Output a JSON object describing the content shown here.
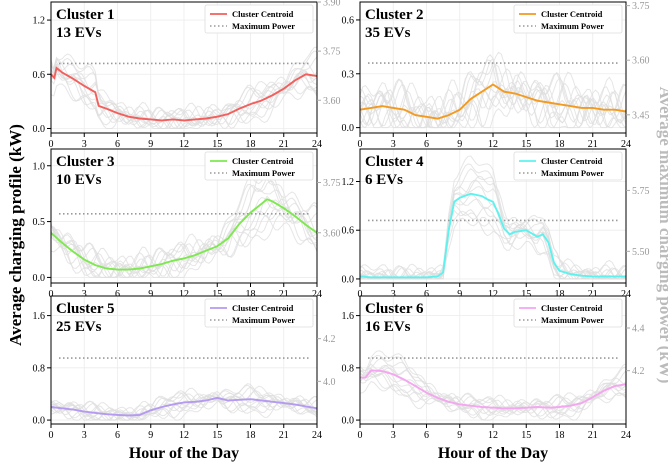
{
  "figure": {
    "ylabel_left": "Average charging profile (kW)",
    "ylabel_right": "Average maximum charging power (kW)",
    "xlabel": "Hour of the Day",
    "legend_centroid": "Cluster Centroid",
    "legend_max": "Maximum Power"
  },
  "chart_data": [
    {
      "type": "line",
      "title": "Cluster 1",
      "subtitle": "13 EVs",
      "color": "#f25f5c",
      "xlim": [
        0,
        24
      ],
      "xticks": [
        0,
        3,
        6,
        9,
        12,
        15,
        18,
        21,
        24
      ],
      "ylim": [
        -0.05,
        1.4
      ],
      "yticks": [
        0.0,
        0.6,
        1.2
      ],
      "ytick_labels": [
        "0.0",
        "0.6",
        "1.2"
      ],
      "y2lim": [
        3.5,
        3.9
      ],
      "y2ticks": [
        3.6,
        3.75,
        3.9
      ],
      "y2tick_labels": [
        "3.60",
        "3.75",
        "3.90"
      ],
      "max_power": 0.72,
      "series": [
        {
          "x": [
            0,
            0.3,
            0.5,
            1,
            2,
            3,
            4,
            4.3,
            5,
            6,
            7,
            8,
            9,
            10,
            11,
            12,
            13,
            14,
            15,
            16,
            17,
            18,
            19,
            20,
            21,
            22,
            23,
            24
          ],
          "y": [
            0.6,
            0.56,
            0.67,
            0.62,
            0.55,
            0.47,
            0.4,
            0.25,
            0.22,
            0.17,
            0.13,
            0.11,
            0.1,
            0.09,
            0.1,
            0.09,
            0.1,
            0.11,
            0.13,
            0.16,
            0.22,
            0.27,
            0.31,
            0.37,
            0.44,
            0.53,
            0.6,
            0.58
          ]
        }
      ]
    },
    {
      "type": "line",
      "title": "Cluster 2",
      "subtitle": "35 EVs",
      "color": "#f39a1f",
      "xlim": [
        0,
        24
      ],
      "xticks": [
        0,
        3,
        6,
        9,
        12,
        15,
        18,
        21,
        24
      ],
      "ylim": [
        -0.03,
        0.7
      ],
      "yticks": [
        0.0,
        0.3,
        0.6
      ],
      "ytick_labels": [
        "0.0",
        "0.3",
        "0.6"
      ],
      "y2lim": [
        3.4,
        3.76
      ],
      "y2ticks": [
        3.45,
        3.6,
        3.75
      ],
      "y2tick_labels": [
        "3.45",
        "3.60",
        "3.75"
      ],
      "max_power": 0.36,
      "series": [
        {
          "x": [
            0,
            1,
            2,
            3,
            4,
            5,
            6,
            7,
            8,
            9,
            10,
            11,
            12,
            13,
            14,
            15,
            16,
            17,
            18,
            19,
            20,
            21,
            22,
            23,
            24
          ],
          "y": [
            0.1,
            0.11,
            0.12,
            0.11,
            0.1,
            0.07,
            0.06,
            0.05,
            0.07,
            0.1,
            0.16,
            0.2,
            0.24,
            0.2,
            0.19,
            0.17,
            0.15,
            0.14,
            0.13,
            0.12,
            0.11,
            0.11,
            0.1,
            0.1,
            0.09
          ]
        }
      ]
    },
    {
      "type": "line",
      "title": "Cluster 3",
      "subtitle": "10 EVs",
      "color": "#7ee84f",
      "xlim": [
        0,
        24
      ],
      "xticks": [
        0,
        3,
        6,
        9,
        12,
        15,
        18,
        21,
        24
      ],
      "ylim": [
        -0.05,
        1.15
      ],
      "yticks": [
        0.0,
        0.5,
        1.0
      ],
      "ytick_labels": [
        "0.0",
        "0.5",
        "1.0"
      ],
      "y2lim": [
        3.45,
        3.85
      ],
      "y2ticks": [
        3.6,
        3.75
      ],
      "y2tick_labels": [
        "3.60",
        "3.75"
      ],
      "max_power": 0.57,
      "series": [
        {
          "x": [
            0,
            1,
            2,
            3,
            4,
            5,
            6,
            7,
            8,
            9,
            10,
            11,
            12,
            13,
            14,
            15,
            16,
            17,
            18,
            19,
            19.5,
            20,
            21,
            22,
            23,
            24
          ],
          "y": [
            0.4,
            0.31,
            0.23,
            0.16,
            0.11,
            0.08,
            0.07,
            0.07,
            0.08,
            0.1,
            0.12,
            0.15,
            0.17,
            0.2,
            0.24,
            0.28,
            0.35,
            0.48,
            0.58,
            0.66,
            0.7,
            0.68,
            0.62,
            0.55,
            0.47,
            0.4
          ]
        }
      ]
    },
    {
      "type": "line",
      "title": "Cluster 4",
      "subtitle": "6 EVs",
      "color": "#5ef2ef",
      "xlim": [
        0,
        24
      ],
      "xticks": [
        0,
        3,
        6,
        9,
        12,
        15,
        18,
        21,
        24
      ],
      "ylim": [
        -0.05,
        1.6
      ],
      "yticks": [
        0.0,
        0.6,
        1.2
      ],
      "ytick_labels": [
        "0.0",
        "0.6",
        "1.2"
      ],
      "y2lim": [
        5.37,
        5.92
      ],
      "y2ticks": [
        5.5,
        5.75
      ],
      "y2tick_labels": [
        "5.50",
        "5.75"
      ],
      "max_power": 0.72,
      "series": [
        {
          "x": [
            0,
            1,
            2,
            3,
            4,
            5,
            6,
            7,
            7.5,
            8,
            8.5,
            9,
            10,
            11,
            11.5,
            12,
            12.5,
            13,
            13.5,
            14,
            15,
            16,
            16.5,
            17,
            17.5,
            18,
            19,
            20,
            21,
            22,
            23,
            24
          ],
          "y": [
            0.03,
            0.02,
            0.02,
            0.02,
            0.02,
            0.02,
            0.02,
            0.03,
            0.08,
            0.6,
            0.95,
            1.0,
            1.05,
            1.02,
            0.98,
            0.95,
            0.8,
            0.62,
            0.55,
            0.58,
            0.6,
            0.52,
            0.55,
            0.45,
            0.2,
            0.1,
            0.06,
            0.04,
            0.03,
            0.03,
            0.03,
            0.03
          ]
        }
      ]
    },
    {
      "type": "line",
      "title": "Cluster 5",
      "subtitle": "25 EVs",
      "color": "#b49af0",
      "xlim": [
        0,
        24
      ],
      "xticks": [
        0,
        3,
        6,
        9,
        12,
        15,
        18,
        21,
        24
      ],
      "ylim": [
        -0.06,
        1.9
      ],
      "yticks": [
        0.0,
        0.8,
        1.6
      ],
      "ytick_labels": [
        "0.0",
        "0.8",
        "1.6"
      ],
      "y2lim": [
        3.8,
        4.4
      ],
      "y2ticks": [
        4.0,
        4.2
      ],
      "y2tick_labels": [
        "4.0",
        "4.2"
      ],
      "max_power": 0.95,
      "series": [
        {
          "x": [
            0,
            1,
            2,
            3,
            4,
            5,
            6,
            7,
            8,
            9,
            10,
            11,
            12,
            13,
            14,
            15,
            16,
            17,
            18,
            19,
            20,
            21,
            22,
            23,
            24
          ],
          "y": [
            0.2,
            0.18,
            0.16,
            0.13,
            0.11,
            0.09,
            0.08,
            0.07,
            0.08,
            0.15,
            0.2,
            0.24,
            0.27,
            0.28,
            0.3,
            0.34,
            0.3,
            0.31,
            0.32,
            0.3,
            0.28,
            0.26,
            0.24,
            0.21,
            0.18
          ]
        }
      ]
    },
    {
      "type": "line",
      "title": "Cluster 6",
      "subtitle": "16 EVs",
      "color": "#f4a6f0",
      "xlim": [
        0,
        24
      ],
      "xticks": [
        0,
        3,
        6,
        9,
        12,
        15,
        18,
        21,
        24
      ],
      "ylim": [
        -0.06,
        1.9
      ],
      "yticks": [
        0.0,
        0.8,
        1.6
      ],
      "ytick_labels": [
        "0.0",
        "0.8",
        "1.6"
      ],
      "y2lim": [
        3.95,
        4.55
      ],
      "y2ticks": [
        4.2,
        4.4
      ],
      "y2tick_labels": [
        "4.2",
        "4.4"
      ],
      "max_power": 0.95,
      "series": [
        {
          "x": [
            0,
            0.5,
            1,
            2,
            3,
            4,
            5,
            6,
            7,
            8,
            9,
            10,
            11,
            12,
            13,
            14,
            15,
            16,
            17,
            18,
            19,
            20,
            21,
            22,
            23,
            24
          ],
          "y": [
            0.65,
            0.65,
            0.76,
            0.75,
            0.7,
            0.62,
            0.52,
            0.42,
            0.34,
            0.28,
            0.24,
            0.22,
            0.2,
            0.19,
            0.18,
            0.18,
            0.19,
            0.2,
            0.19,
            0.2,
            0.22,
            0.26,
            0.35,
            0.45,
            0.52,
            0.55
          ]
        }
      ]
    }
  ]
}
